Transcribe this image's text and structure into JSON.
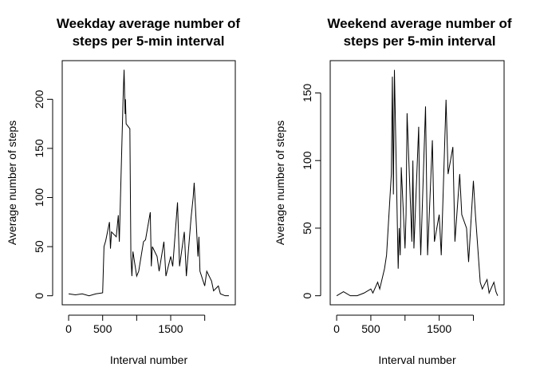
{
  "chart_data": [
    {
      "type": "line",
      "title": [
        "Weekday average number of",
        "steps per 5-min interval"
      ],
      "x_label": "Interval number",
      "y_label": "Average number of steps",
      "xlim": [
        -94.2,
        2449.2
      ],
      "ylim": [
        -9.2,
        239.3
      ],
      "xticks": [
        0,
        500,
        1500
      ],
      "xtick_marks": [
        0,
        500,
        1000,
        1500,
        2000
      ],
      "yticks": [
        0,
        50,
        100,
        150,
        200
      ],
      "color": "#000000",
      "x": [
        0,
        100,
        200,
        300,
        400,
        500,
        520,
        545,
        600,
        615,
        630,
        700,
        730,
        745,
        800,
        815,
        830,
        835,
        845,
        900,
        915,
        930,
        945,
        1000,
        1030,
        1100,
        1130,
        1200,
        1215,
        1230,
        1300,
        1330,
        1400,
        1430,
        1500,
        1530,
        1600,
        1630,
        1700,
        1730,
        1800,
        1830,
        1845,
        1900,
        1915,
        1930,
        2000,
        2030,
        2100,
        2130,
        2200,
        2230,
        2300,
        2355
      ],
      "values": [
        2,
        1,
        2,
        0,
        2,
        3,
        50,
        56,
        75,
        48,
        65,
        60,
        82,
        55,
        200,
        230,
        185,
        200,
        175,
        170,
        40,
        20,
        45,
        20,
        25,
        55,
        57,
        85,
        30,
        50,
        40,
        25,
        55,
        20,
        40,
        30,
        95,
        30,
        65,
        20,
        80,
        100,
        115,
        40,
        60,
        25,
        10,
        25,
        15,
        5,
        10,
        2,
        0,
        0
      ]
    },
    {
      "type": "line",
      "title": [
        "Weekend average number of",
        "steps per 5-min interval"
      ],
      "x_label": "Interval number",
      "y_label": "Average number of steps",
      "xlim": [
        -94.2,
        2449.2
      ],
      "ylim": [
        -6.7,
        173.9
      ],
      "xticks": [
        0,
        500,
        1500
      ],
      "xtick_marks": [
        0,
        500,
        1000,
        1500,
        2000
      ],
      "yticks": [
        0,
        50,
        100,
        150
      ],
      "color": "#000000",
      "x": [
        0,
        100,
        200,
        300,
        400,
        500,
        530,
        600,
        630,
        700,
        730,
        800,
        815,
        830,
        845,
        900,
        915,
        930,
        945,
        1000,
        1015,
        1030,
        1100,
        1115,
        1130,
        1200,
        1215,
        1230,
        1300,
        1330,
        1400,
        1430,
        1500,
        1530,
        1600,
        1630,
        1700,
        1730,
        1800,
        1830,
        1900,
        1930,
        2000,
        2030,
        2100,
        2130,
        2200,
        2230,
        2300,
        2330,
        2355
      ],
      "values": [
        0,
        3,
        0,
        0,
        2,
        5,
        2,
        10,
        5,
        20,
        30,
        90,
        162,
        75,
        167,
        20,
        50,
        30,
        95,
        35,
        60,
        135,
        40,
        100,
        35,
        125,
        60,
        30,
        140,
        30,
        115,
        40,
        60,
        30,
        145,
        90,
        110,
        40,
        90,
        60,
        50,
        25,
        85,
        60,
        10,
        5,
        12,
        2,
        10,
        3,
        0
      ]
    }
  ]
}
